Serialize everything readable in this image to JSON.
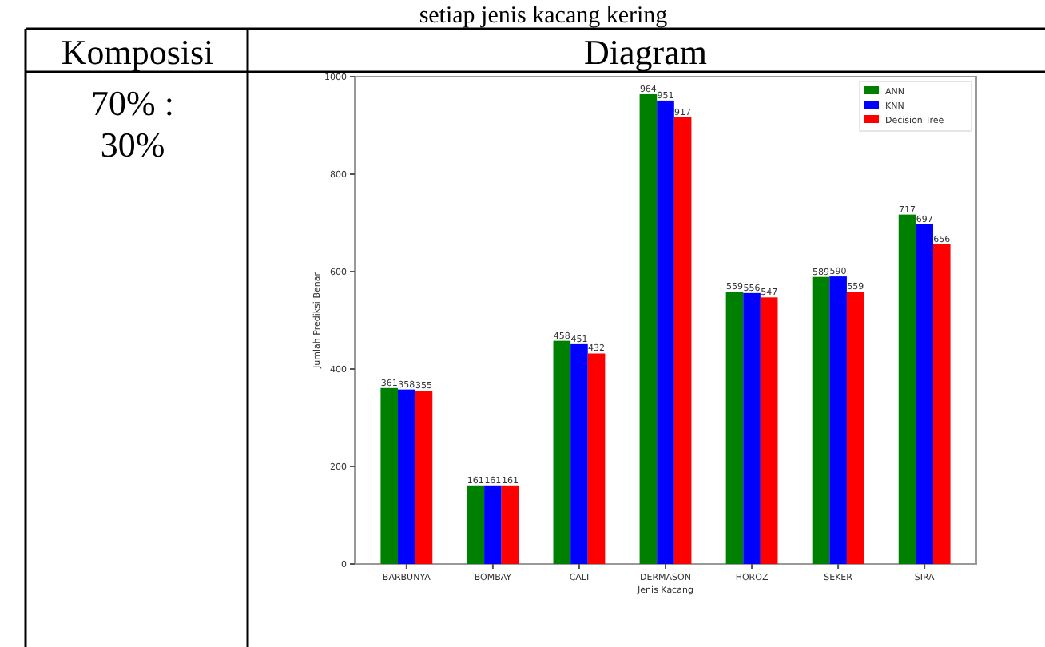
{
  "chart_data": {
    "type": "bar",
    "xlabel": "Jenis Kacang",
    "ylabel": "Jumlah Prediksi Benar",
    "categories": [
      "BARBUNYA",
      "BOMBAY",
      "CALI",
      "DERMASON",
      "HOROZ",
      "SEKER",
      "SIRA"
    ],
    "series": [
      {
        "name": "ANN",
        "color": "#008000",
        "values": [
          361,
          161,
          458,
          964,
          559,
          589,
          717
        ]
      },
      {
        "name": "KNN",
        "color": "#0000ff",
        "values": [
          358,
          161,
          451,
          951,
          556,
          590,
          697
        ]
      },
      {
        "name": "Decision Tree",
        "color": "#ff0000",
        "values": [
          355,
          161,
          432,
          917,
          547,
          559,
          656
        ]
      }
    ],
    "ylim": [
      0,
      1000
    ],
    "yticks": [
      0,
      200,
      400,
      600,
      800,
      1000
    ],
    "data_labels": true,
    "legend": "top right",
    "grid": false,
    "annotations": [
      "setiap jenis kacang kering",
      "Komposisi",
      "Diagram",
      "70% : 30%"
    ]
  }
}
